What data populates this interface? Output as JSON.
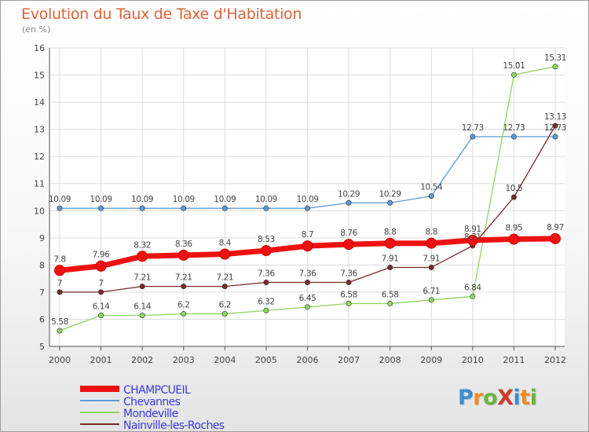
{
  "title": "Evolution du Taux de Taxe d'Habitation",
  "unit_label": "(en %)",
  "logo": {
    "text": "ProXiti",
    "letter_colors": [
      "#3a8fd1",
      "#f08a24",
      "#6ab43e",
      "#d0392b",
      "#3a8fd1",
      "#f08a24",
      "#6ab43e"
    ]
  },
  "chart_data": {
    "type": "line",
    "x": [
      "2000",
      "2001",
      "2002",
      "2003",
      "2004",
      "2005",
      "2006",
      "2007",
      "2008",
      "2009",
      "2010",
      "2011",
      "2012"
    ],
    "ylim": [
      5,
      16
    ],
    "yticks": [
      5,
      6,
      7,
      8,
      9,
      10,
      11,
      12,
      13,
      14,
      15,
      16
    ],
    "grid": true,
    "legend_position": "bottom-left",
    "series": [
      {
        "name": "CHAMPCUEIL",
        "color": "#ee1111",
        "values": [
          7.8,
          7.96,
          8.32,
          8.36,
          8.4,
          8.53,
          8.7,
          8.76,
          8.8,
          8.8,
          8.91,
          8.95,
          8.97
        ],
        "labels": [
          "7.8",
          "7.96",
          "8.32",
          "8.36",
          "8.4",
          "8.53",
          "8.7",
          "8.76",
          "8.8",
          "8.8",
          "8.91",
          "8.95",
          "8.97"
        ]
      },
      {
        "name": "Chevannes",
        "color": "#5b9bd5",
        "values": [
          10.09,
          10.09,
          10.09,
          10.09,
          10.09,
          10.09,
          10.09,
          10.29,
          10.29,
          10.54,
          12.73,
          12.73,
          12.73
        ],
        "labels": [
          "10.09",
          "10.09",
          "10.09",
          "10.09",
          "10.09",
          "10.09",
          "10.09",
          "10.29",
          "10.29",
          "10.54",
          "12.73",
          "12.73",
          "12.73"
        ]
      },
      {
        "name": "Mondeville",
        "color": "#8fd660",
        "values": [
          5.58,
          6.14,
          6.14,
          6.2,
          6.2,
          6.32,
          6.45,
          6.58,
          6.58,
          6.71,
          6.84,
          15.01,
          15.31
        ],
        "labels": [
          "5.58",
          "6.14",
          "6.14",
          "6.2",
          "6.2",
          "6.32",
          "6.45",
          "6.58",
          "6.58",
          "6.71",
          "6.84",
          "15.01",
          "15.31"
        ]
      },
      {
        "name": "Nainville-les-Roches",
        "color": "#7a2b2b",
        "values": [
          7,
          7,
          7.21,
          7.21,
          7.21,
          7.36,
          7.36,
          7.36,
          7.91,
          7.91,
          8.71,
          10.5,
          13.13
        ],
        "labels": [
          "7",
          "7",
          "7.21",
          "7.21",
          "7.21",
          "7.36",
          "7.36",
          "7.36",
          "7.91",
          "7.91",
          "8.71",
          "10.5",
          "13.13"
        ]
      }
    ]
  }
}
